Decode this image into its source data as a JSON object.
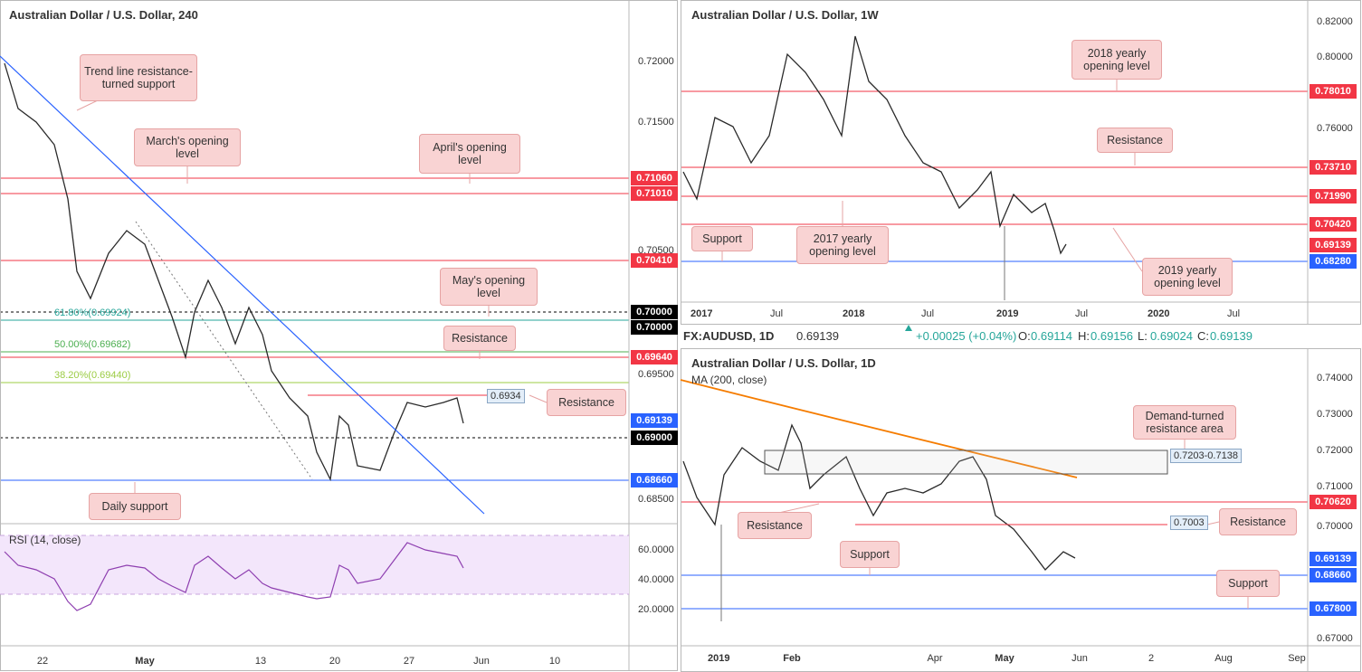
{
  "panels": [
    {
      "title": "Australian Dollar / U.S. Dollar, 240",
      "price_ticks": [
        "0.72000",
        "0.71500",
        "0.70500",
        "0.69500",
        "0.68500"
      ],
      "price_tags": [
        {
          "label": "0.71060",
          "color": "#f23645",
          "style": "solid"
        },
        {
          "label": "0.71010",
          "color": "#f23645",
          "style": "solid"
        },
        {
          "label": "0.70410",
          "color": "#f23645",
          "style": "solid"
        },
        {
          "label": "0.70000",
          "color": "#000000",
          "style": "dashed"
        },
        {
          "label": "0.70000",
          "color": "#000000",
          "style": "none"
        },
        {
          "label": "0.69640",
          "color": "#f23645",
          "style": "solid"
        },
        {
          "label": "0.69139",
          "color": "#2962ff",
          "style": "none"
        },
        {
          "label": "0.69000",
          "color": "#000000",
          "style": "dashed"
        },
        {
          "label": "0.68660",
          "color": "#2962ff",
          "style": "solid"
        }
      ],
      "fib_levels": [
        {
          "label": "61.80%(0.69924)",
          "color": "#26a69a"
        },
        {
          "label": "50.00%(0.69682)",
          "color": "#4caf50"
        },
        {
          "label": "38.20%(0.69440)",
          "color": "#9ccc45"
        }
      ],
      "annotations": [
        "Trend line resistance-turned support",
        "March's opening level",
        "April's opening level",
        "May's opening level",
        "Resistance",
        "Resistance",
        "Daily support"
      ],
      "small_tags": [
        "0.6934"
      ],
      "indicator": {
        "title": "RSI (14, close)",
        "ticks": [
          "60.0000",
          "40.0000",
          "20.0000"
        ]
      },
      "x_labels": [
        "22",
        "May",
        "13",
        "20",
        "27",
        "Jun",
        "10"
      ]
    },
    {
      "title": "Australian Dollar / U.S. Dollar, 1W",
      "price_ticks": [
        "0.82000",
        "0.80000",
        "0.76000"
      ],
      "price_tags": [
        {
          "label": "0.78010",
          "color": "#f23645",
          "style": "solid"
        },
        {
          "label": "0.73710",
          "color": "#f23645",
          "style": "solid"
        },
        {
          "label": "0.71990",
          "color": "#f23645",
          "style": "solid"
        },
        {
          "label": "0.70420",
          "color": "#f23645",
          "style": "solid"
        },
        {
          "label": "0.69139",
          "color": "#f23645",
          "style": "none"
        },
        {
          "label": "0.68280",
          "color": "#2962ff",
          "style": "solid"
        }
      ],
      "annotations": [
        "2018 yearly opening level",
        "Resistance",
        "Support",
        "2017 yearly opening level",
        "2019 yearly opening level"
      ],
      "x_labels": [
        "2017",
        "Jul",
        "2018",
        "Jul",
        "2019",
        "Jul",
        "2020",
        "Jul"
      ]
    },
    {
      "title": "Australian Dollar / U.S. Dollar, 1D",
      "indicator_title": "MA (200, close)",
      "price_ticks": [
        "0.74000",
        "0.73000",
        "0.72000",
        "0.71000",
        "0.70000",
        "0.67000"
      ],
      "price_tags": [
        {
          "label": "0.70620",
          "color": "#f23645",
          "style": "solid"
        },
        {
          "label": "0.69139",
          "color": "#2962ff",
          "style": "none"
        },
        {
          "label": "0.68660",
          "color": "#2962ff",
          "style": "solid"
        },
        {
          "label": "0.67800",
          "color": "#2962ff",
          "style": "solid"
        }
      ],
      "annotations": [
        "Demand-turned resistance area",
        "Resistance",
        "Resistance",
        "Support",
        "Support"
      ],
      "small_tags": [
        "0.7203-0.7138",
        "0.7003"
      ],
      "x_labels": [
        "2019",
        "Feb",
        "Apr",
        "May",
        "Jun",
        "2",
        "Aug",
        "Sep"
      ]
    }
  ],
  "info_bar": {
    "symbol": "FX:AUDUSD, 1D",
    "price": "0.69139",
    "change": "+0.00025 (+0.04%)",
    "ohlc": [
      {
        "label": "O:",
        "value": "0.69114"
      },
      {
        "label": "H:",
        "value": "0.69156"
      },
      {
        "label": "L:",
        "value": "0.69024"
      },
      {
        "label": "C:",
        "value": "0.69139"
      }
    ]
  }
}
